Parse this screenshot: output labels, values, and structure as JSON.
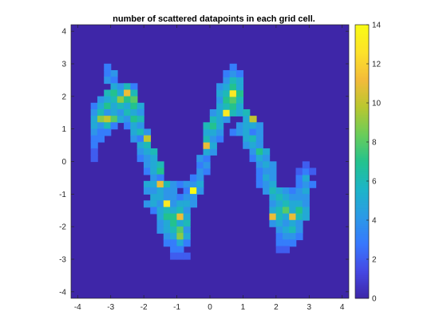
{
  "chart_data": {
    "type": "heatmap",
    "title": "number of scattered datapoints in each grid cell.",
    "xlabel": "",
    "ylabel": "",
    "xlim": [
      -4.2,
      4.2
    ],
    "ylim": [
      -4.2,
      4.2
    ],
    "x_ticks": [
      -4,
      -3,
      -2,
      -1,
      0,
      1,
      2,
      3,
      4
    ],
    "y_ticks": [
      -4,
      -3,
      -2,
      -1,
      0,
      1,
      2,
      3,
      4
    ],
    "colorbar": {
      "min": 0,
      "max": 14,
      "ticks": [
        0,
        2,
        4,
        6,
        8,
        10,
        12,
        14
      ]
    },
    "colormap": [
      "#3e26a8",
      "#4548e3",
      "#3778fe",
      "#2c9ae6",
      "#1cb5c8",
      "#23c28e",
      "#6bcd59",
      "#b9c72f",
      "#f3bb3a",
      "#fde22a",
      "#f9fb15"
    ],
    "background_value": 0,
    "cell_width": 0.21,
    "cell_height": 0.21,
    "cells": [
      [
        -3.1,
        2.9,
        3
      ],
      [
        -3.1,
        2.7,
        3
      ],
      [
        -2.9,
        2.7,
        4
      ],
      [
        -3.1,
        2.5,
        4
      ],
      [
        -2.9,
        2.5,
        3
      ],
      [
        -2.9,
        2.3,
        5
      ],
      [
        -2.7,
        2.3,
        4
      ],
      [
        -2.5,
        2.3,
        6
      ],
      [
        -2.3,
        2.3,
        3
      ],
      [
        -3.1,
        2.1,
        6
      ],
      [
        -2.9,
        2.1,
        7
      ],
      [
        -2.7,
        2.1,
        5
      ],
      [
        -2.5,
        2.1,
        11
      ],
      [
        -2.3,
        2.1,
        6
      ],
      [
        -3.3,
        1.9,
        4
      ],
      [
        -3.1,
        1.9,
        5
      ],
      [
        -2.9,
        1.9,
        6
      ],
      [
        -2.7,
        1.9,
        9
      ],
      [
        -2.5,
        1.9,
        7
      ],
      [
        -2.3,
        1.9,
        8
      ],
      [
        -3.5,
        1.7,
        3
      ],
      [
        -3.3,
        1.7,
        5
      ],
      [
        -3.1,
        1.7,
        7
      ],
      [
        -2.9,
        1.7,
        5
      ],
      [
        -2.7,
        1.7,
        6
      ],
      [
        -2.5,
        1.7,
        5
      ],
      [
        -2.3,
        1.7,
        7
      ],
      [
        -2.1,
        1.7,
        5
      ],
      [
        -3.5,
        1.5,
        4
      ],
      [
        -3.3,
        1.5,
        6
      ],
      [
        -3.1,
        1.5,
        4
      ],
      [
        -2.9,
        1.5,
        5
      ],
      [
        -2.7,
        1.5,
        4
      ],
      [
        -2.5,
        1.5,
        6
      ],
      [
        -2.3,
        1.5,
        5
      ],
      [
        -2.1,
        1.5,
        4
      ],
      [
        -3.5,
        1.3,
        5
      ],
      [
        -3.3,
        1.3,
        9
      ],
      [
        -3.1,
        1.3,
        10
      ],
      [
        -2.9,
        1.3,
        8
      ],
      [
        -2.7,
        1.3,
        5
      ],
      [
        -2.5,
        1.3,
        4
      ],
      [
        -2.3,
        1.3,
        7
      ],
      [
        -2.1,
        1.3,
        6
      ],
      [
        -3.5,
        1.1,
        5
      ],
      [
        -3.3,
        1.1,
        4
      ],
      [
        -3.1,
        1.1,
        6
      ],
      [
        -2.9,
        1.1,
        3
      ],
      [
        -2.5,
        1.1,
        3
      ],
      [
        -2.3,
        1.1,
        5
      ],
      [
        -2.1,
        1.1,
        4
      ],
      [
        -3.5,
        0.9,
        4
      ],
      [
        -3.3,
        0.9,
        3
      ],
      [
        -3.1,
        0.9,
        3
      ],
      [
        -2.3,
        0.9,
        5
      ],
      [
        -2.1,
        0.9,
        6
      ],
      [
        -1.9,
        0.9,
        4
      ],
      [
        -3.5,
        0.7,
        3
      ],
      [
        -3.3,
        0.7,
        3
      ],
      [
        -2.3,
        0.7,
        4
      ],
      [
        -2.1,
        0.7,
        3
      ],
      [
        -1.9,
        0.7,
        10
      ],
      [
        -3.5,
        0.5,
        3
      ],
      [
        -2.1,
        0.5,
        5
      ],
      [
        -1.9,
        0.5,
        6
      ],
      [
        -3.5,
        0.3,
        2
      ],
      [
        -2.1,
        0.3,
        4
      ],
      [
        -1.9,
        0.3,
        5
      ],
      [
        -1.7,
        0.3,
        6
      ],
      [
        -3.5,
        0.1,
        2
      ],
      [
        -2.1,
        0.1,
        3
      ],
      [
        -1.9,
        0.1,
        4
      ],
      [
        -1.7,
        0.1,
        5
      ],
      [
        -1.9,
        -0.1,
        4
      ],
      [
        -1.7,
        -0.1,
        5
      ],
      [
        -1.5,
        -0.1,
        6
      ],
      [
        -1.9,
        -0.3,
        3
      ],
      [
        -1.7,
        -0.3,
        5
      ],
      [
        -1.5,
        -0.3,
        7
      ],
      [
        -1.7,
        -0.5,
        4
      ],
      [
        -1.5,
        -0.5,
        3
      ],
      [
        -1.9,
        -0.7,
        5
      ],
      [
        -1.7,
        -0.7,
        5
      ],
      [
        -1.5,
        -0.7,
        11
      ],
      [
        -1.3,
        -0.7,
        6
      ],
      [
        -1.1,
        -0.7,
        4
      ],
      [
        -0.9,
        -0.7,
        3
      ],
      [
        -0.7,
        -0.7,
        4
      ],
      [
        -0.5,
        -0.7,
        4
      ],
      [
        -1.9,
        -0.9,
        4
      ],
      [
        -1.7,
        -0.9,
        4
      ],
      [
        -1.5,
        -0.9,
        5
      ],
      [
        -1.3,
        -0.9,
        4
      ],
      [
        -1.1,
        -0.9,
        4
      ],
      [
        -0.7,
        -0.9,
        3
      ],
      [
        -0.5,
        -0.9,
        14
      ],
      [
        -1.7,
        -1.1,
        5
      ],
      [
        -1.5,
        -1.1,
        5
      ],
      [
        -1.3,
        -1.1,
        4
      ],
      [
        -1.1,
        -1.1,
        4
      ],
      [
        -0.9,
        -1.1,
        3
      ],
      [
        -0.7,
        -1.1,
        4
      ],
      [
        -0.5,
        -1.1,
        4
      ],
      [
        -1.9,
        -1.3,
        4
      ],
      [
        -1.7,
        -1.3,
        5
      ],
      [
        -1.5,
        -1.3,
        4
      ],
      [
        -1.3,
        -1.3,
        13
      ],
      [
        -1.1,
        -1.3,
        4
      ],
      [
        -0.9,
        -1.3,
        5
      ],
      [
        -0.7,
        -1.3,
        5
      ],
      [
        -0.5,
        -1.3,
        4
      ],
      [
        -1.7,
        -1.5,
        3
      ],
      [
        -1.5,
        -1.5,
        5
      ],
      [
        -1.3,
        -1.5,
        6
      ],
      [
        -1.1,
        -1.5,
        5
      ],
      [
        -0.9,
        -1.5,
        6
      ],
      [
        -0.7,
        -1.5,
        4
      ],
      [
        -1.5,
        -1.7,
        5
      ],
      [
        -1.3,
        -1.7,
        7
      ],
      [
        -1.1,
        -1.7,
        7
      ],
      [
        -0.9,
        -1.7,
        11
      ],
      [
        -0.7,
        -1.7,
        5
      ],
      [
        -1.5,
        -1.9,
        4
      ],
      [
        -1.3,
        -1.9,
        5
      ],
      [
        -1.1,
        -1.9,
        7
      ],
      [
        -0.9,
        -1.9,
        5
      ],
      [
        -0.7,
        -1.9,
        6
      ],
      [
        -1.5,
        -2.1,
        4
      ],
      [
        -1.3,
        -2.1,
        5
      ],
      [
        -1.1,
        -2.1,
        6
      ],
      [
        -0.9,
        -2.1,
        8
      ],
      [
        -0.7,
        -2.1,
        4
      ],
      [
        -1.3,
        -2.3,
        4
      ],
      [
        -1.1,
        -2.3,
        5
      ],
      [
        -0.9,
        -2.3,
        9
      ],
      [
        -0.7,
        -2.3,
        5
      ],
      [
        -1.3,
        -2.5,
        3
      ],
      [
        -1.1,
        -2.5,
        3
      ],
      [
        -0.9,
        -2.5,
        5
      ],
      [
        -0.7,
        -2.5,
        3
      ],
      [
        -1.1,
        -2.7,
        3
      ],
      [
        -0.9,
        -2.7,
        3
      ],
      [
        -1.1,
        -2.9,
        2
      ],
      [
        -0.9,
        -2.9,
        2
      ],
      [
        -0.7,
        -2.9,
        2
      ],
      [
        -0.5,
        -0.5,
        3
      ],
      [
        -0.3,
        -0.5,
        4
      ],
      [
        -0.3,
        -0.7,
        5
      ],
      [
        -0.3,
        -0.9,
        4
      ],
      [
        -0.3,
        -0.3,
        4
      ],
      [
        -0.1,
        -0.3,
        3
      ],
      [
        -0.3,
        -0.1,
        3
      ],
      [
        -0.1,
        -0.1,
        4
      ],
      [
        -0.3,
        0.1,
        4
      ],
      [
        -0.1,
        0.1,
        3
      ],
      [
        -0.1,
        0.3,
        5
      ],
      [
        0.1,
        0.3,
        4
      ],
      [
        -0.1,
        0.5,
        11
      ],
      [
        0.1,
        0.5,
        5
      ],
      [
        -0.1,
        0.7,
        6
      ],
      [
        0.1,
        0.7,
        4
      ],
      [
        0.3,
        0.7,
        3
      ],
      [
        -0.1,
        0.9,
        5
      ],
      [
        0.1,
        0.9,
        5
      ],
      [
        0.3,
        0.9,
        4
      ],
      [
        -0.1,
        1.1,
        6
      ],
      [
        0.1,
        1.1,
        7
      ],
      [
        0.3,
        1.1,
        5
      ],
      [
        0.1,
        1.3,
        6
      ],
      [
        0.3,
        1.3,
        5
      ],
      [
        0.5,
        1.3,
        4
      ],
      [
        0.1,
        1.5,
        4
      ],
      [
        0.3,
        1.5,
        5
      ],
      [
        0.5,
        1.5,
        13
      ],
      [
        0.7,
        1.5,
        6
      ],
      [
        0.3,
        1.7,
        5
      ],
      [
        0.5,
        1.7,
        6
      ],
      [
        0.7,
        1.7,
        7
      ],
      [
        0.9,
        1.7,
        5
      ],
      [
        0.3,
        1.9,
        4
      ],
      [
        0.5,
        1.9,
        7
      ],
      [
        0.7,
        1.9,
        8
      ],
      [
        0.9,
        1.9,
        6
      ],
      [
        0.3,
        2.1,
        5
      ],
      [
        0.5,
        2.1,
        6
      ],
      [
        0.7,
        2.1,
        13
      ],
      [
        0.9,
        2.1,
        7
      ],
      [
        0.3,
        2.3,
        4
      ],
      [
        0.5,
        2.3,
        5
      ],
      [
        0.7,
        2.3,
        7
      ],
      [
        0.9,
        2.3,
        5
      ],
      [
        0.5,
        2.5,
        4
      ],
      [
        0.7,
        2.5,
        6
      ],
      [
        0.9,
        2.5,
        5
      ],
      [
        0.5,
        2.7,
        3
      ],
      [
        0.7,
        2.7,
        4
      ],
      [
        0.9,
        2.7,
        3
      ],
      [
        0.7,
        2.9,
        3
      ],
      [
        0.9,
        1.5,
        5
      ],
      [
        1.1,
        1.5,
        6
      ],
      [
        1.1,
        1.3,
        5
      ],
      [
        1.3,
        1.3,
        10
      ],
      [
        0.9,
        1.1,
        4
      ],
      [
        1.1,
        1.1,
        5
      ],
      [
        1.3,
        1.1,
        5
      ],
      [
        1.5,
        1.1,
        4
      ],
      [
        0.7,
        0.9,
        3
      ],
      [
        0.9,
        0.9,
        4
      ],
      [
        1.1,
        0.9,
        5
      ],
      [
        1.3,
        0.9,
        3
      ],
      [
        1.5,
        0.9,
        4
      ],
      [
        1.1,
        0.7,
        5
      ],
      [
        1.3,
        0.7,
        6
      ],
      [
        1.5,
        0.7,
        4
      ],
      [
        1.1,
        0.5,
        4
      ],
      [
        1.3,
        0.5,
        5
      ],
      [
        1.5,
        0.5,
        4
      ],
      [
        1.3,
        0.3,
        4
      ],
      [
        1.5,
        0.3,
        7
      ],
      [
        1.7,
        0.3,
        5
      ],
      [
        1.3,
        0.1,
        3
      ],
      [
        1.5,
        0.1,
        5
      ],
      [
        1.7,
        0.1,
        4
      ],
      [
        1.5,
        -0.1,
        4
      ],
      [
        1.7,
        -0.1,
        5
      ],
      [
        1.9,
        -0.1,
        4
      ],
      [
        1.5,
        -0.3,
        3
      ],
      [
        1.7,
        -0.3,
        4
      ],
      [
        1.9,
        -0.3,
        4
      ],
      [
        1.5,
        -0.5,
        3
      ],
      [
        1.7,
        -0.5,
        5
      ],
      [
        1.9,
        -0.5,
        4
      ],
      [
        1.5,
        -0.7,
        3
      ],
      [
        1.7,
        -0.7,
        4
      ],
      [
        1.9,
        -0.7,
        5
      ],
      [
        1.7,
        -0.9,
        4
      ],
      [
        1.9,
        -0.9,
        6
      ],
      [
        2.1,
        -0.9,
        5
      ],
      [
        2.3,
        -0.9,
        4
      ],
      [
        2.5,
        -0.9,
        3
      ],
      [
        2.7,
        -0.9,
        4
      ],
      [
        2.9,
        -0.9,
        5
      ],
      [
        1.9,
        -1.1,
        5
      ],
      [
        2.1,
        -1.1,
        6
      ],
      [
        2.3,
        -1.1,
        5
      ],
      [
        2.5,
        -1.1,
        4
      ],
      [
        2.7,
        -1.1,
        4
      ],
      [
        2.9,
        -1.1,
        4
      ],
      [
        1.9,
        -1.3,
        4
      ],
      [
        2.1,
        -1.3,
        5
      ],
      [
        2.3,
        -1.3,
        6
      ],
      [
        2.5,
        -1.3,
        5
      ],
      [
        2.7,
        -1.3,
        5
      ],
      [
        2.9,
        -1.3,
        4
      ],
      [
        1.9,
        -1.5,
        5
      ],
      [
        2.1,
        -1.5,
        6
      ],
      [
        2.3,
        -1.5,
        8
      ],
      [
        2.5,
        -1.5,
        5
      ],
      [
        2.7,
        -1.5,
        7
      ],
      [
        2.9,
        -1.5,
        5
      ],
      [
        1.9,
        -1.7,
        11
      ],
      [
        2.1,
        -1.7,
        6
      ],
      [
        2.3,
        -1.7,
        5
      ],
      [
        2.5,
        -1.7,
        11
      ],
      [
        2.7,
        -1.7,
        6
      ],
      [
        2.9,
        -1.7,
        5
      ],
      [
        1.9,
        -1.9,
        4
      ],
      [
        2.1,
        -1.9,
        5
      ],
      [
        2.3,
        -1.9,
        4
      ],
      [
        2.5,
        -1.9,
        5
      ],
      [
        2.7,
        -1.9,
        4
      ],
      [
        2.1,
        -2.1,
        4
      ],
      [
        2.3,
        -2.1,
        5
      ],
      [
        2.5,
        -2.1,
        6
      ],
      [
        2.7,
        -2.1,
        4
      ],
      [
        2.1,
        -2.3,
        3
      ],
      [
        2.3,
        -2.3,
        4
      ],
      [
        2.5,
        -2.3,
        4
      ],
      [
        2.7,
        -2.3,
        3
      ],
      [
        2.1,
        -2.5,
        3
      ],
      [
        2.3,
        -2.5,
        3
      ],
      [
        2.5,
        -2.5,
        3
      ],
      [
        2.1,
        -2.7,
        2
      ],
      [
        2.3,
        -2.7,
        2
      ],
      [
        2.7,
        -0.7,
        3
      ],
      [
        2.9,
        -0.7,
        4
      ],
      [
        3.1,
        -0.7,
        3
      ],
      [
        2.7,
        -0.5,
        3
      ],
      [
        2.9,
        -0.5,
        5
      ],
      [
        2.7,
        -0.3,
        2
      ],
      [
        2.9,
        -0.3,
        3
      ],
      [
        3.1,
        -0.3,
        2
      ],
      [
        2.9,
        -0.1,
        2
      ]
    ]
  }
}
